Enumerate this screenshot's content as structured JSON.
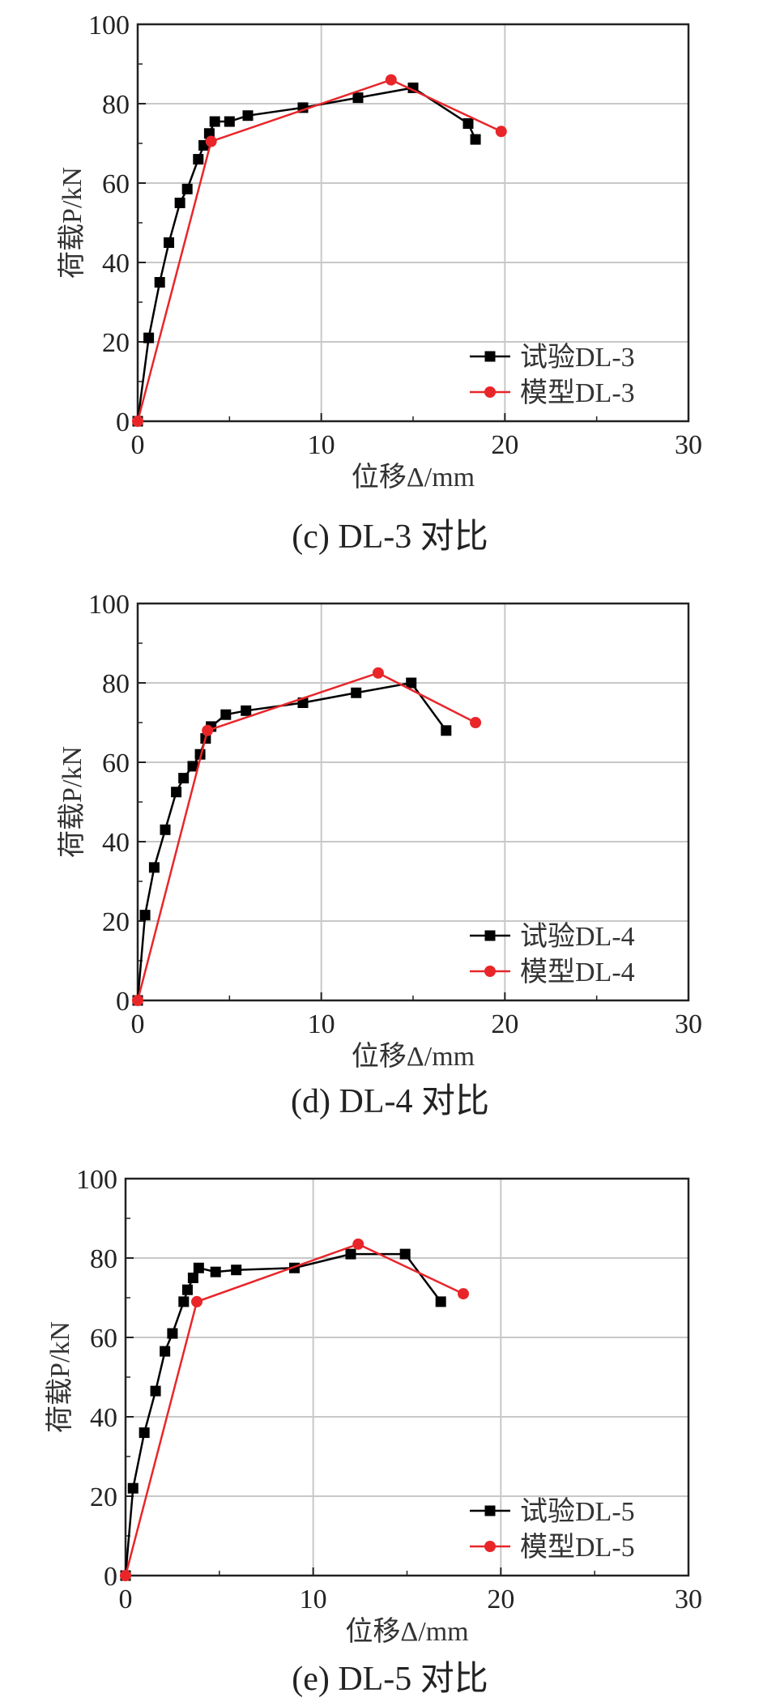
{
  "chart_data": [
    {
      "type": "line",
      "xlabel": "位移Δ/mm",
      "ylabel": "荷载P/kN",
      "xlim": [
        0,
        30
      ],
      "ylim": [
        0,
        100
      ],
      "xticks": [
        "0",
        "10",
        "20",
        "30"
      ],
      "yticks": [
        "0",
        "20",
        "40",
        "60",
        "80",
        "100"
      ],
      "grid": true,
      "legend_position": "bottom-right",
      "caption": "(c) DL-3 对比",
      "series": [
        {
          "name": "试验DL-3",
          "color": "#000000",
          "marker": "square",
          "x": [
            0,
            0.6,
            1.2,
            1.7,
            2.3,
            2.7,
            3.3,
            3.6,
            3.9,
            4.2,
            5.0,
            6.0,
            9.0,
            12.0,
            15.0,
            18.0,
            18.4
          ],
          "y": [
            0,
            21,
            35,
            45,
            55,
            58.5,
            66,
            69.5,
            72.5,
            75.5,
            75.5,
            77,
            79,
            81.5,
            84,
            75,
            71
          ]
        },
        {
          "name": "模型DL-3",
          "color": "#e8262a",
          "marker": "circle",
          "x": [
            0,
            4.0,
            13.8,
            19.8
          ],
          "y": [
            0,
            70.5,
            86,
            73
          ]
        }
      ]
    },
    {
      "type": "line",
      "xlabel": "位移Δ/mm",
      "ylabel": "荷载P/kN",
      "xlim": [
        0,
        30
      ],
      "ylim": [
        0,
        100
      ],
      "xticks": [
        "0",
        "10",
        "20",
        "30"
      ],
      "yticks": [
        "0",
        "20",
        "40",
        "60",
        "80",
        "100"
      ],
      "grid": true,
      "legend_position": "bottom-right",
      "caption": "(d) DL-4 对比",
      "series": [
        {
          "name": "试验DL-4",
          "color": "#000000",
          "marker": "square",
          "x": [
            0,
            0.4,
            0.9,
            1.5,
            2.1,
            2.5,
            3.0,
            3.4,
            3.7,
            4.0,
            4.8,
            5.9,
            9.0,
            11.9,
            14.9,
            16.8
          ],
          "y": [
            0,
            21.5,
            33.5,
            43,
            52.5,
            56,
            59,
            62,
            66,
            69,
            72,
            73,
            75,
            77.5,
            80,
            68
          ]
        },
        {
          "name": "模型DL-4",
          "color": "#e8262a",
          "marker": "circle",
          "x": [
            0,
            3.8,
            13.1,
            18.4
          ],
          "y": [
            0,
            68,
            82.5,
            70
          ]
        }
      ]
    },
    {
      "type": "line",
      "xlabel": "位移Δ/mm",
      "ylabel": "荷载P/kN",
      "xlim": [
        0,
        30
      ],
      "ylim": [
        0,
        100
      ],
      "xticks": [
        "0",
        "10",
        "20",
        "30"
      ],
      "yticks": [
        "0",
        "20",
        "40",
        "60",
        "80",
        "100"
      ],
      "grid": true,
      "legend_position": "bottom-right",
      "caption": "(e) DL-5 对比",
      "series": [
        {
          "name": "试验DL-5",
          "color": "#000000",
          "marker": "square",
          "x": [
            0,
            0.4,
            1.0,
            1.6,
            2.1,
            2.5,
            3.1,
            3.3,
            3.6,
            3.9,
            4.8,
            5.9,
            9.0,
            12.0,
            14.9,
            16.8
          ],
          "y": [
            0,
            22,
            36,
            46.5,
            56.5,
            61,
            69,
            72,
            75,
            77.5,
            76.5,
            77,
            77.5,
            81,
            81,
            69
          ]
        },
        {
          "name": "模型DL-5",
          "color": "#e8262a",
          "marker": "circle",
          "x": [
            0,
            3.8,
            12.4,
            18.0
          ],
          "y": [
            0,
            69,
            83.5,
            71
          ]
        }
      ]
    }
  ]
}
